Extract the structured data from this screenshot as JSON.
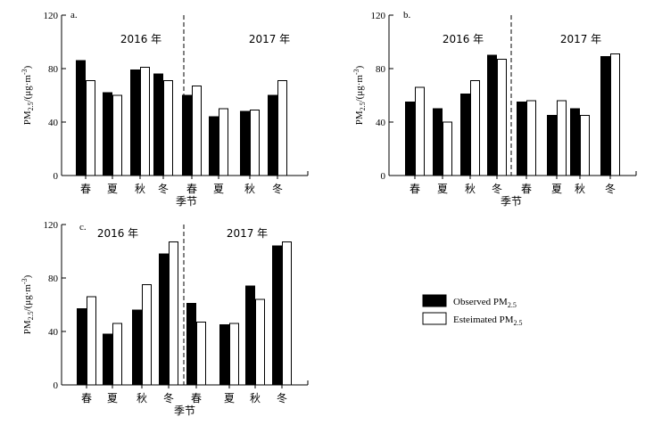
{
  "legend": {
    "observed": {
      "label": "Observed PM",
      "sub": "2.5",
      "color": "#000000"
    },
    "estimated": {
      "label": "Esteimated PM",
      "sub": "2.5",
      "color": "#ffffff"
    }
  },
  "chart_data": [
    {
      "type": "bar",
      "panel_label": "a.",
      "ylabel": "PM",
      "ylabel_sub": "2.5",
      "ylabel_unit": "/(μg·m",
      "ylabel_sup": "-3",
      "ylabel_close": ")",
      "xlabel": "季节",
      "ylim": [
        0,
        120
      ],
      "yticks": [
        0,
        40,
        80,
        120
      ],
      "years": [
        "2016 年",
        "2017 年"
      ],
      "categories": [
        "春",
        "夏",
        "秋",
        "冬",
        "春",
        "夏",
        "秋",
        "冬"
      ],
      "series": [
        {
          "name": "Observed PM2.5",
          "values": [
            86,
            62,
            79,
            76,
            60,
            44,
            48,
            60
          ]
        },
        {
          "name": "Esteimated PM2.5",
          "values": [
            71,
            60,
            81,
            71,
            67,
            50,
            49,
            71
          ]
        }
      ]
    },
    {
      "type": "bar",
      "panel_label": "b.",
      "ylabel": "PM",
      "ylabel_sub": "2.5",
      "ylabel_unit": "/(μg·m",
      "ylabel_sup": "-3",
      "ylabel_close": ")",
      "xlabel": "季节",
      "ylim": [
        0,
        120
      ],
      "yticks": [
        0,
        40,
        80,
        120
      ],
      "years": [
        "2016 年",
        "2017 年"
      ],
      "categories": [
        "春",
        "夏",
        "秋",
        "冬",
        "春",
        "夏",
        "秋",
        "冬"
      ],
      "series": [
        {
          "name": "Observed PM2.5",
          "values": [
            55,
            50,
            61,
            90,
            55,
            45,
            50,
            89
          ]
        },
        {
          "name": "Esteimated PM2.5",
          "values": [
            66,
            40,
            71,
            87,
            56,
            56,
            45,
            91
          ]
        }
      ]
    },
    {
      "type": "bar",
      "panel_label": "c.",
      "ylabel": "PM",
      "ylabel_sub": "2.5",
      "ylabel_unit": "/(μg·m",
      "ylabel_sup": "-3",
      "ylabel_close": ")",
      "xlabel": "季节",
      "ylim": [
        0,
        120
      ],
      "yticks": [
        0,
        40,
        80,
        120
      ],
      "years": [
        "2016 年",
        "2017 年"
      ],
      "categories": [
        "春",
        "夏",
        "秋",
        "冬",
        "春",
        "夏",
        "秋",
        "冬"
      ],
      "series": [
        {
          "name": "Observed PM2.5",
          "values": [
            57,
            38,
            56,
            98,
            61,
            45,
            74,
            104
          ]
        },
        {
          "name": "Esteimated PM2.5",
          "values": [
            66,
            46,
            75,
            107,
            47,
            46,
            64,
            107
          ]
        }
      ]
    }
  ]
}
